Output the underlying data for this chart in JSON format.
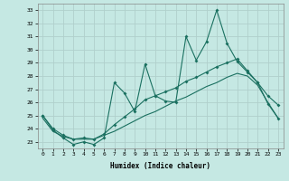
{
  "xlabel": "Humidex (Indice chaleur)",
  "xlim": [
    -0.5,
    23.5
  ],
  "ylim": [
    22.5,
    33.5
  ],
  "yticks": [
    23,
    24,
    25,
    26,
    27,
    28,
    29,
    30,
    31,
    32,
    33
  ],
  "xticks": [
    0,
    1,
    2,
    3,
    4,
    5,
    6,
    7,
    8,
    9,
    10,
    11,
    12,
    13,
    14,
    15,
    16,
    17,
    18,
    19,
    20,
    21,
    22,
    23
  ],
  "bg_color": "#c5e8e3",
  "line_color": "#1a7060",
  "grid_color": "#b0d0cc",
  "line1_y": [
    25.0,
    23.9,
    23.3,
    22.8,
    23.0,
    22.8,
    23.3,
    27.5,
    26.7,
    25.3,
    28.9,
    26.5,
    26.1,
    26.0,
    31.0,
    29.2,
    30.6,
    33.0,
    30.5,
    29.1,
    28.3,
    27.5,
    25.9,
    24.8
  ],
  "line2_y": [
    25.0,
    24.0,
    23.5,
    23.2,
    23.3,
    23.2,
    23.6,
    24.3,
    24.9,
    25.5,
    26.2,
    26.5,
    26.8,
    27.1,
    27.6,
    27.9,
    28.3,
    28.7,
    29.0,
    29.3,
    28.4,
    27.5,
    26.5,
    25.8
  ],
  "line3_y": [
    24.8,
    23.8,
    23.4,
    23.2,
    23.2,
    23.2,
    23.5,
    23.8,
    24.2,
    24.6,
    25.0,
    25.3,
    25.7,
    26.1,
    26.4,
    26.8,
    27.2,
    27.5,
    27.9,
    28.2,
    28.0,
    27.3,
    26.0,
    24.8
  ],
  "font_size_tick": 4.5,
  "font_size_label": 5.5,
  "font_family": "monospace"
}
